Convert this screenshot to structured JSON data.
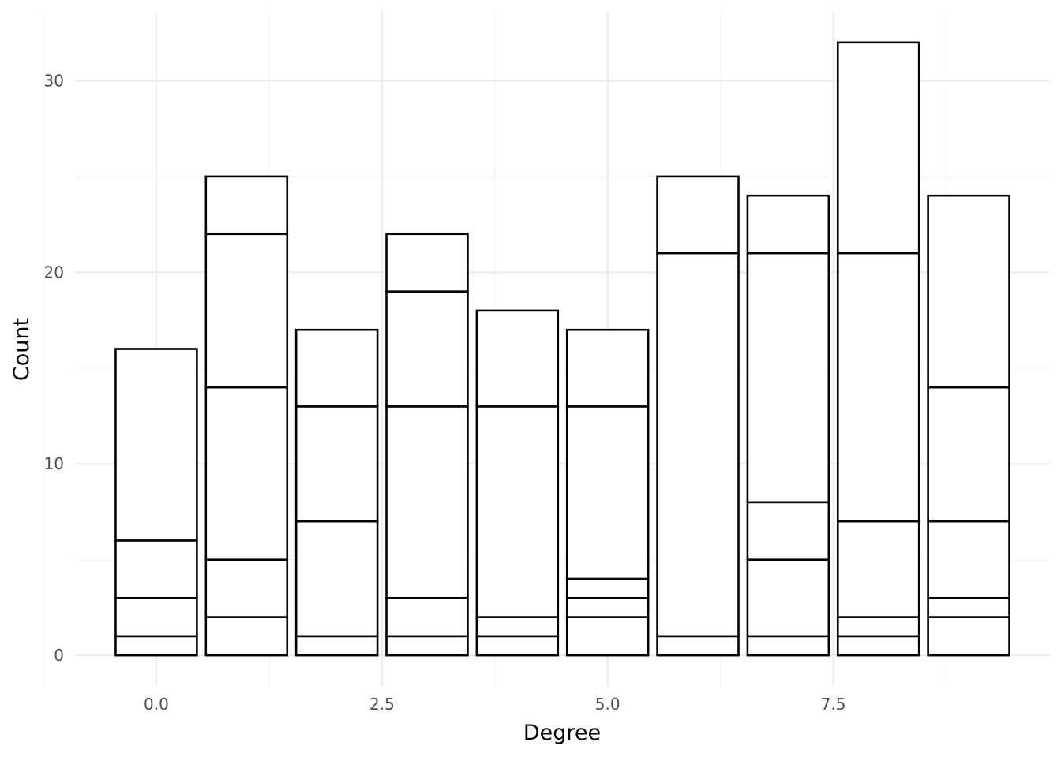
{
  "chart_data": {
    "type": "bar",
    "stacked": true,
    "xlabel": "Degree",
    "ylabel": "Count",
    "x_ticks": [
      "0.0",
      "2.5",
      "5.0",
      "7.5"
    ],
    "y_ticks": [
      "0",
      "10",
      "20",
      "30"
    ],
    "xlim": [
      -0.9,
      9.9
    ],
    "ylim": [
      -1.6,
      33.6
    ],
    "grid": true,
    "legend": "none",
    "bar_fill": "#ffffff",
    "bar_outline": "#000000",
    "x": [
      0,
      1,
      2,
      3,
      4,
      5,
      6,
      7,
      8,
      9
    ],
    "bar_width": 0.9,
    "series": [
      {
        "values": [
          1,
          2,
          1,
          1,
          1,
          2,
          1,
          1,
          1,
          2
        ]
      },
      {
        "values": [
          2,
          3,
          6,
          2,
          1,
          1,
          20,
          4,
          1,
          1
        ]
      },
      {
        "values": [
          3,
          9,
          6,
          10,
          11,
          1,
          0,
          3,
          5,
          4
        ]
      },
      {
        "values": [
          10,
          8,
          4,
          6,
          0,
          9,
          4,
          13,
          14,
          7
        ]
      },
      {
        "values": [
          0,
          3,
          0,
          3,
          5,
          4,
          0,
          3,
          11,
          10
        ]
      }
    ],
    "totals": [
      16,
      25,
      17,
      22,
      18,
      17,
      25,
      24,
      32,
      24
    ]
  }
}
